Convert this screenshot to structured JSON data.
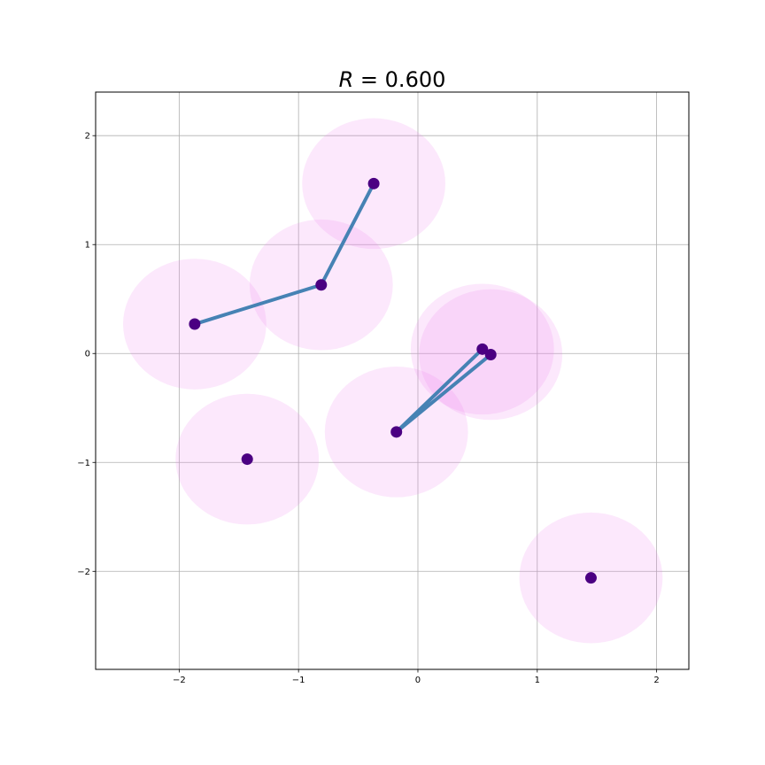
{
  "chart_data": {
    "type": "scatter",
    "title": {
      "prefix": "R",
      "rest": " = 0.600"
    },
    "radius": 0.6,
    "xlim": [
      -2.7,
      2.27
    ],
    "ylim": [
      -2.9,
      2.4
    ],
    "xticks": [
      -2,
      -1,
      0,
      1,
      2
    ],
    "yticks": [
      -2,
      -1,
      0,
      1,
      2
    ],
    "xtick_labels": [
      "−2",
      "−1",
      "0",
      "1",
      "2"
    ],
    "ytick_labels": [
      "−2",
      "−1",
      "0",
      "1",
      "2"
    ],
    "grid": true,
    "points": [
      {
        "x": -0.37,
        "y": 1.56
      },
      {
        "x": -0.81,
        "y": 0.63
      },
      {
        "x": -1.87,
        "y": 0.27
      },
      {
        "x": 0.54,
        "y": 0.04
      },
      {
        "x": 0.61,
        "y": -0.01
      },
      {
        "x": -0.18,
        "y": -0.72
      },
      {
        "x": -1.43,
        "y": -0.97
      },
      {
        "x": 1.45,
        "y": -2.06
      }
    ],
    "edges": [
      [
        0,
        1
      ],
      [
        1,
        2
      ],
      [
        3,
        5
      ],
      [
        4,
        5
      ],
      [
        3,
        4
      ]
    ],
    "colors": {
      "point": "#4b0082",
      "edge": "#4682b4",
      "disk": "#ee82ee",
      "grid": "#b0b0b0",
      "axes": "#000000"
    }
  }
}
